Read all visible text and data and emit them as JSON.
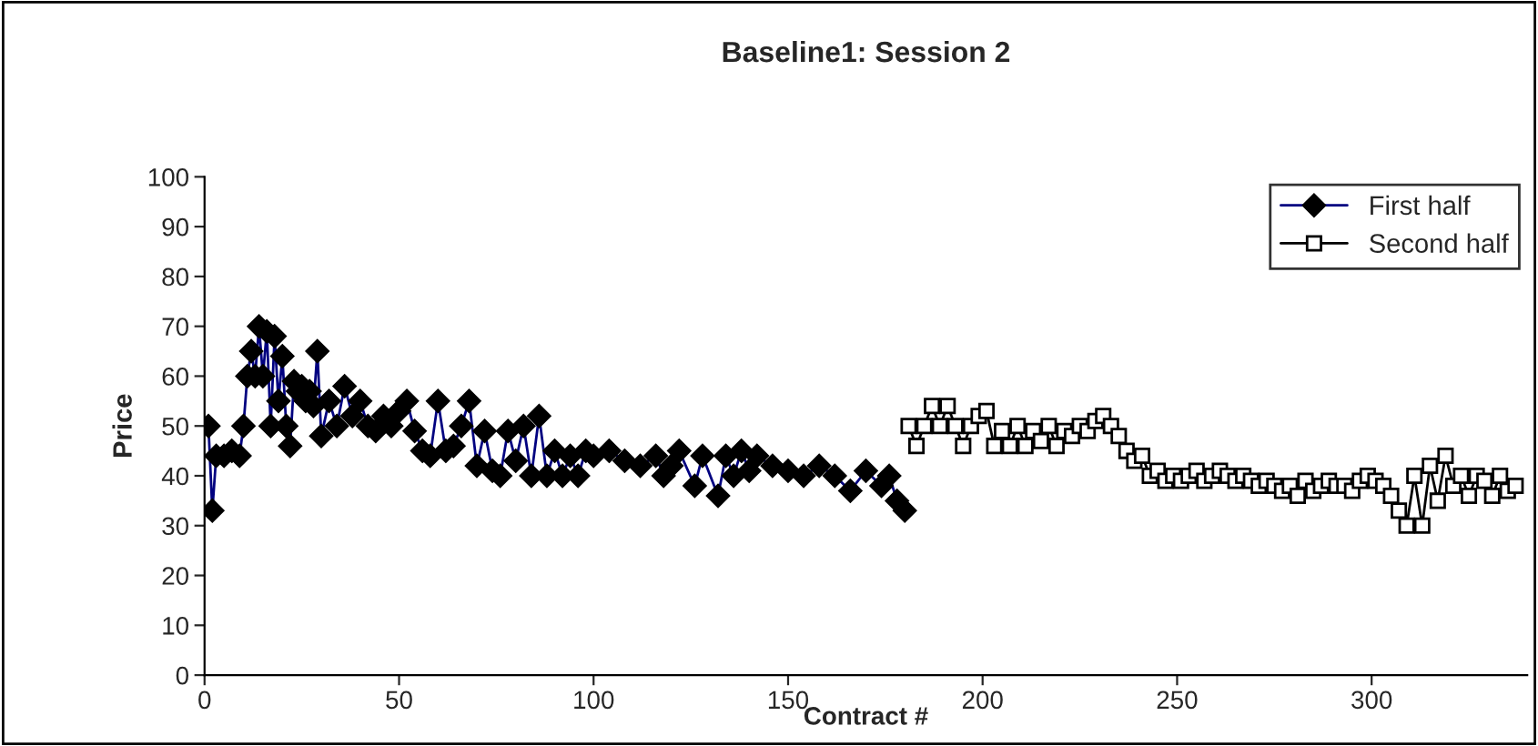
{
  "chart_data": {
    "type": "line",
    "title": "Baseline1: Session 2",
    "xlabel": "Contract #",
    "ylabel": "Price",
    "xlim": [
      0,
      340
    ],
    "xticks": [
      0,
      50,
      100,
      150,
      200,
      250,
      300
    ],
    "ylim": [
      0,
      100
    ],
    "yticks": [
      0,
      10,
      20,
      30,
      40,
      50,
      60,
      70,
      80,
      90,
      100
    ],
    "grid": false,
    "legend": "top right",
    "series": [
      {
        "name": "First half",
        "color": "#000080",
        "marker": "diamond",
        "x": [
          1,
          2,
          3,
          5,
          7,
          9,
          10,
          11,
          12,
          13,
          14,
          15,
          16,
          17,
          18,
          19,
          20,
          21,
          22,
          23,
          24,
          25,
          26,
          27,
          28,
          29,
          30,
          32,
          34,
          36,
          38,
          40,
          42,
          44,
          46,
          48,
          50,
          52,
          54,
          56,
          58,
          60,
          62,
          64,
          66,
          68,
          70,
          72,
          74,
          76,
          78,
          80,
          82,
          84,
          86,
          88,
          90,
          92,
          94,
          96,
          98,
          100,
          104,
          108,
          112,
          116,
          118,
          120,
          122,
          126,
          128,
          132,
          134,
          136,
          138,
          140,
          142,
          146,
          150,
          154,
          158,
          162,
          166,
          170,
          174,
          176,
          178,
          180
        ],
        "values": [
          50,
          33,
          44,
          44,
          45,
          44,
          50,
          60,
          65,
          60,
          70,
          60,
          69,
          50,
          68,
          55,
          64,
          50,
          46,
          59,
          57,
          58,
          55,
          57,
          54,
          65,
          48,
          55,
          50,
          58,
          52,
          55,
          50,
          49,
          52,
          50,
          53,
          55,
          49,
          45,
          44,
          55,
          45,
          46,
          50,
          55,
          42,
          49,
          41,
          40,
          49,
          43,
          50,
          40,
          52,
          40,
          45,
          40,
          44,
          40,
          45,
          44,
          45,
          43,
          42,
          44,
          40,
          42,
          45,
          38,
          44,
          36,
          44,
          40,
          45,
          41,
          44,
          42,
          41,
          40,
          42,
          40,
          37,
          41,
          38,
          40,
          35,
          33
        ]
      },
      {
        "name": "Second half",
        "color": "#000000",
        "marker": "square",
        "x": [
          181,
          183,
          185,
          187,
          189,
          191,
          193,
          195,
          197,
          199,
          201,
          203,
          205,
          207,
          209,
          211,
          213,
          215,
          217,
          219,
          221,
          223,
          225,
          227,
          229,
          231,
          233,
          235,
          237,
          239,
          241,
          243,
          245,
          247,
          249,
          251,
          253,
          255,
          257,
          259,
          261,
          263,
          265,
          267,
          269,
          271,
          273,
          275,
          277,
          279,
          281,
          283,
          285,
          287,
          289,
          291,
          293,
          295,
          297,
          299,
          301,
          303,
          305,
          307,
          309,
          311,
          313,
          315,
          317,
          319,
          321,
          323,
          325,
          327,
          329,
          331,
          333,
          335,
          337
        ],
        "values": [
          50,
          46,
          50,
          54,
          50,
          54,
          50,
          46,
          50,
          52,
          53,
          46,
          49,
          46,
          50,
          46,
          49,
          47,
          50,
          46,
          49,
          48,
          50,
          49,
          51,
          52,
          50,
          48,
          45,
          43,
          44,
          40,
          41,
          39,
          40,
          39,
          40,
          41,
          39,
          40,
          41,
          40,
          39,
          40,
          39,
          38,
          39,
          38,
          37,
          38,
          36,
          39,
          37,
          38,
          39,
          38,
          38,
          37,
          39,
          40,
          39,
          38,
          36,
          33,
          30,
          40,
          30,
          42,
          35,
          44,
          38,
          40,
          36,
          40,
          39,
          36,
          40,
          37,
          38
        ]
      }
    ]
  }
}
